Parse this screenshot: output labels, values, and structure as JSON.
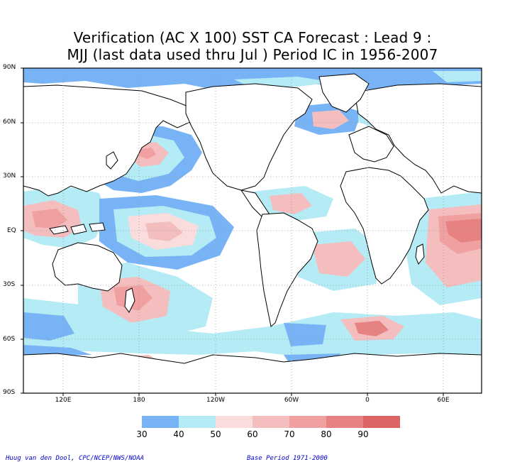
{
  "title_line1": "Verification (AC X 100) SST CA Forecast : Lead 9 :",
  "title_line2": "MJJ (last data used thru Jul ) Period IC in 1956-2007",
  "lat_labels": [
    "90N",
    "60N",
    "30N",
    "EQ",
    "30S",
    "60S",
    "90S"
  ],
  "lon_labels": [
    "120E",
    "180",
    "120W",
    "60W",
    "0",
    "60E"
  ],
  "legend": {
    "labels": [
      "30",
      "40",
      "50",
      "60",
      "70",
      "80",
      "90"
    ],
    "colors": [
      "#78b4f5",
      "#b4ebf5",
      "#fadcdc",
      "#f5bebe",
      "#f0a0a0",
      "#e68282",
      "#dc6464"
    ]
  },
  "credit_left": "Huug van den Dool, CPC/NCEP/NWS/NOAA",
  "credit_right": "Base Period 1971-2000"
}
